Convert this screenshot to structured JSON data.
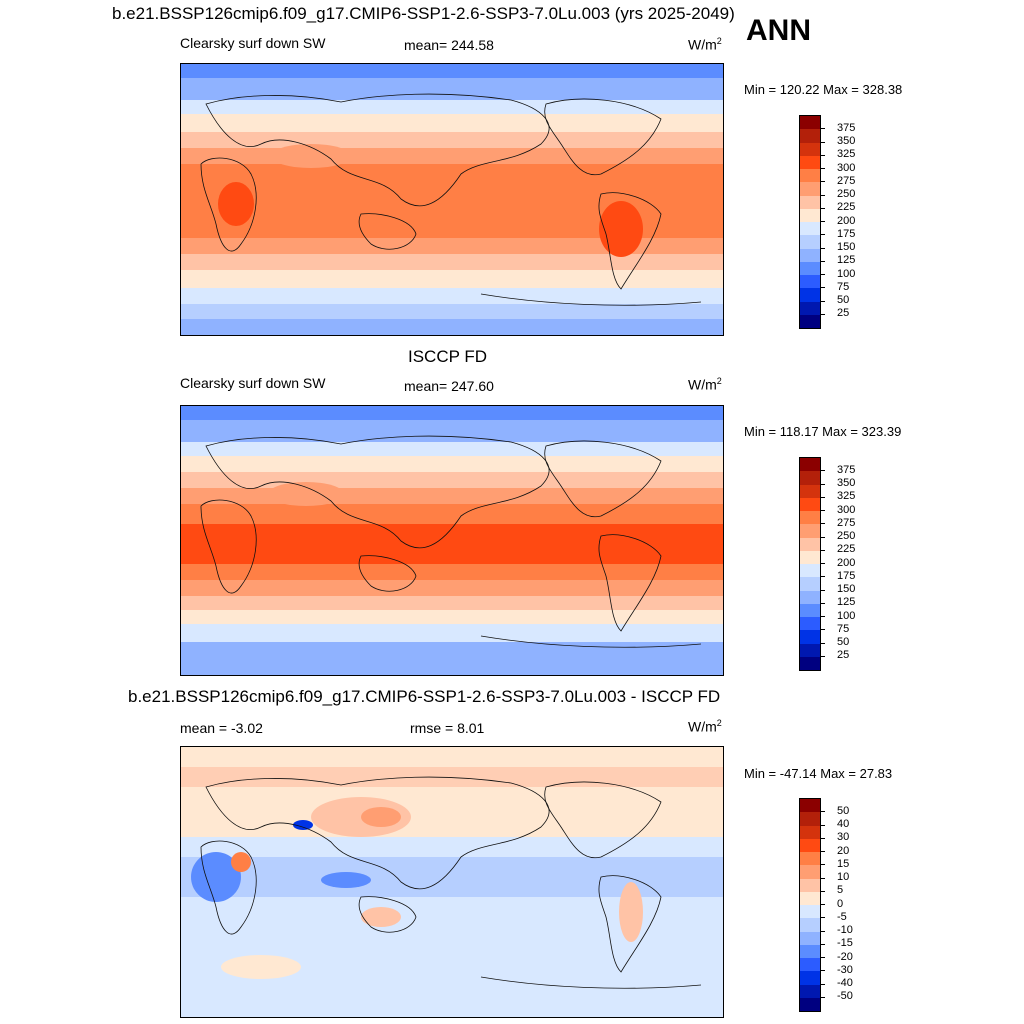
{
  "page": {
    "season": "ANN"
  },
  "panels": [
    {
      "title": "b.e21.BSSP126cmip6.f09_g17.CMIP6-SSP1-2.6-SSP3-7.0Lu.003 (yrs 2025-2049)",
      "variable": "Clearsky surf down SW",
      "stat": "mean= 244.58",
      "units": "W/m",
      "units_exp": "2",
      "minmax": "Min = 120.22 Max = 328.38"
    },
    {
      "title": "ISCCP FD",
      "variable": "Clearsky surf down SW",
      "stat": "mean= 247.60",
      "units": "W/m",
      "units_exp": "2",
      "minmax": "Min = 118.17 Max = 323.39"
    },
    {
      "title": "b.e21.BSSP126cmip6.f09_g17.CMIP6-SSP1-2.6-SSP3-7.0Lu.003 - ISCCP FD",
      "variable": "mean =  -3.02",
      "stat": "rmse =   8.01",
      "units": "W/m",
      "units_exp": "2",
      "minmax": "Min = -47.14 Max =  27.83"
    }
  ],
  "colorbars": {
    "abs_labels": [
      "375",
      "350",
      "325",
      "300",
      "275",
      "250",
      "225",
      "200",
      "175",
      "150",
      "125",
      "100",
      "75",
      "50",
      "25"
    ],
    "abs_colors": [
      "#8b0000",
      "#b3200a",
      "#d4330d",
      "#ff4a12",
      "#ff7f45",
      "#ff9e72",
      "#ffc3a6",
      "#ffe8d2",
      "#d8e8ff",
      "#b6cfff",
      "#8fb2ff",
      "#5b8cff",
      "#2c5cff",
      "#0033e6",
      "#0018b0",
      "#000080"
    ],
    "diff_labels": [
      "50",
      "40",
      "30",
      "20",
      "15",
      "10",
      "5",
      "0",
      "-5",
      "-10",
      "-15",
      "-20",
      "-30",
      "-40",
      "-50"
    ],
    "diff_colors": [
      "#8b0000",
      "#b3200a",
      "#d4330d",
      "#ff4a12",
      "#ff7f45",
      "#ff9e72",
      "#ffc3a6",
      "#ffe8d2",
      "#d8e8ff",
      "#b6cfff",
      "#8fb2ff",
      "#5b8cff",
      "#2c5cff",
      "#0033e6",
      "#0018b0",
      "#000080"
    ]
  }
}
